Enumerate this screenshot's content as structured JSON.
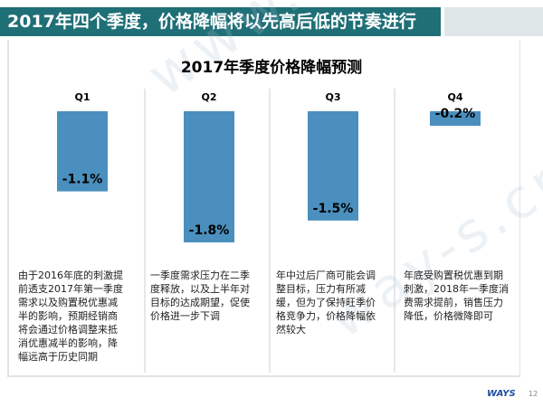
{
  "header": {
    "title": "2017年四个季度，价格降幅将以先高后低的节奏进行"
  },
  "chart_data": {
    "type": "bar",
    "title": "2017年季度价格降幅预测",
    "categories": [
      "Q1",
      "Q2",
      "Q3",
      "Q4"
    ],
    "values": [
      -1.1,
      -1.8,
      -1.5,
      -0.2
    ],
    "data_labels": [
      "-1.1%",
      "-1.8%",
      "-1.5%",
      "-0.2%"
    ],
    "ylim": [
      -1.8,
      0
    ],
    "bar_color": "#4a8fbd",
    "grid": false
  },
  "descriptions": [
    "由于2016年底的刺激提前透支2017年第一季度需求以及购置税优惠减半的影响，预期经销商将会通过价格调整来抵消优惠减半的影响，降幅远高于历史同期",
    "一季度需求压力在二季度释放，以及上半年对目标的达成期望，促使价格进一步下调",
    "年中过后厂商可能会调整目标，压力有所减缓，但为了保持旺季价格竞争力，价格降幅依然较大",
    "年底受购置税优惠到期刺激，2018年一季度消费需求提前，销售压力降低，价格微降即可"
  ],
  "watermark": "www.way-s.cn",
  "footer": {
    "logo": "WAYS",
    "page_number": "12"
  }
}
